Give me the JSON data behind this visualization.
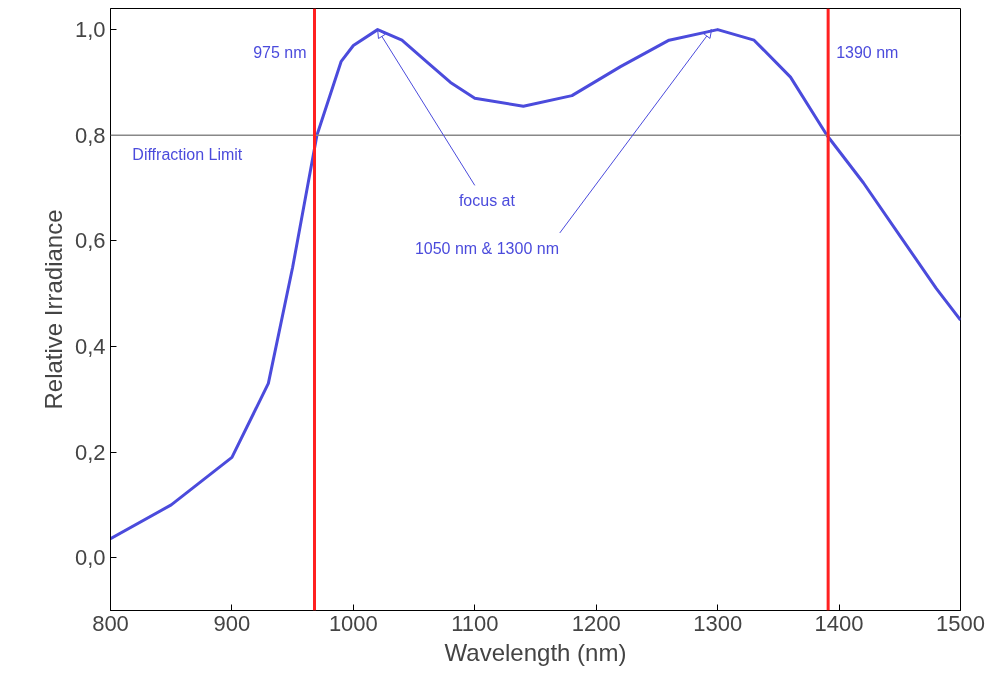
{
  "chart_data": {
    "type": "line",
    "xlabel": "Wavelength (nm)",
    "ylabel": "Relative Irradiance",
    "x": [
      800,
      850,
      900,
      930,
      950,
      970,
      990,
      1000,
      1020,
      1040,
      1060,
      1080,
      1100,
      1140,
      1180,
      1220,
      1260,
      1300,
      1330,
      1360,
      1390,
      1420,
      1450,
      1480,
      1500
    ],
    "series": [
      {
        "color": "#4b4bdc",
        "values": [
          0.036,
          0.1,
          0.19,
          0.33,
          0.55,
          0.8,
          0.94,
          0.97,
          1.0,
          0.98,
          0.94,
          0.9,
          0.87,
          0.855,
          0.875,
          0.93,
          0.98,
          1.0,
          0.98,
          0.91,
          0.8,
          0.71,
          0.61,
          0.51,
          0.45
        ]
      }
    ],
    "xlim": [
      800,
      1500
    ],
    "ylim": [
      -0.1,
      1.04
    ],
    "xticks": [
      800,
      900,
      1000,
      1100,
      1200,
      1300,
      1400,
      1500
    ],
    "yticks": [
      {
        "value": 0,
        "label": "0,0"
      },
      {
        "value": 0.2,
        "label": "0,2"
      },
      {
        "value": 0.4,
        "label": "0,4"
      },
      {
        "value": 0.6,
        "label": "0,6"
      },
      {
        "value": 0.8,
        "label": "0,8"
      },
      {
        "value": 1.0,
        "label": "1,0"
      }
    ],
    "ref_lines": [
      {
        "axis": "y",
        "value": 0.8,
        "label": "Diffraction Limit",
        "color": "#888888"
      },
      {
        "axis": "x",
        "value": 968,
        "label": "975 nm",
        "color": "#ff2020"
      },
      {
        "axis": "x",
        "value": 1391,
        "label": "1390 nm",
        "color": "#ff2020"
      }
    ],
    "annotations": [
      {
        "text": "focus at",
        "x": 1020,
        "y": 1.0
      },
      {
        "text": "1050 nm & 1300 nm",
        "x": 1295,
        "y": 1.0
      }
    ],
    "grid": false,
    "marker": "none",
    "line_style": "solid"
  }
}
